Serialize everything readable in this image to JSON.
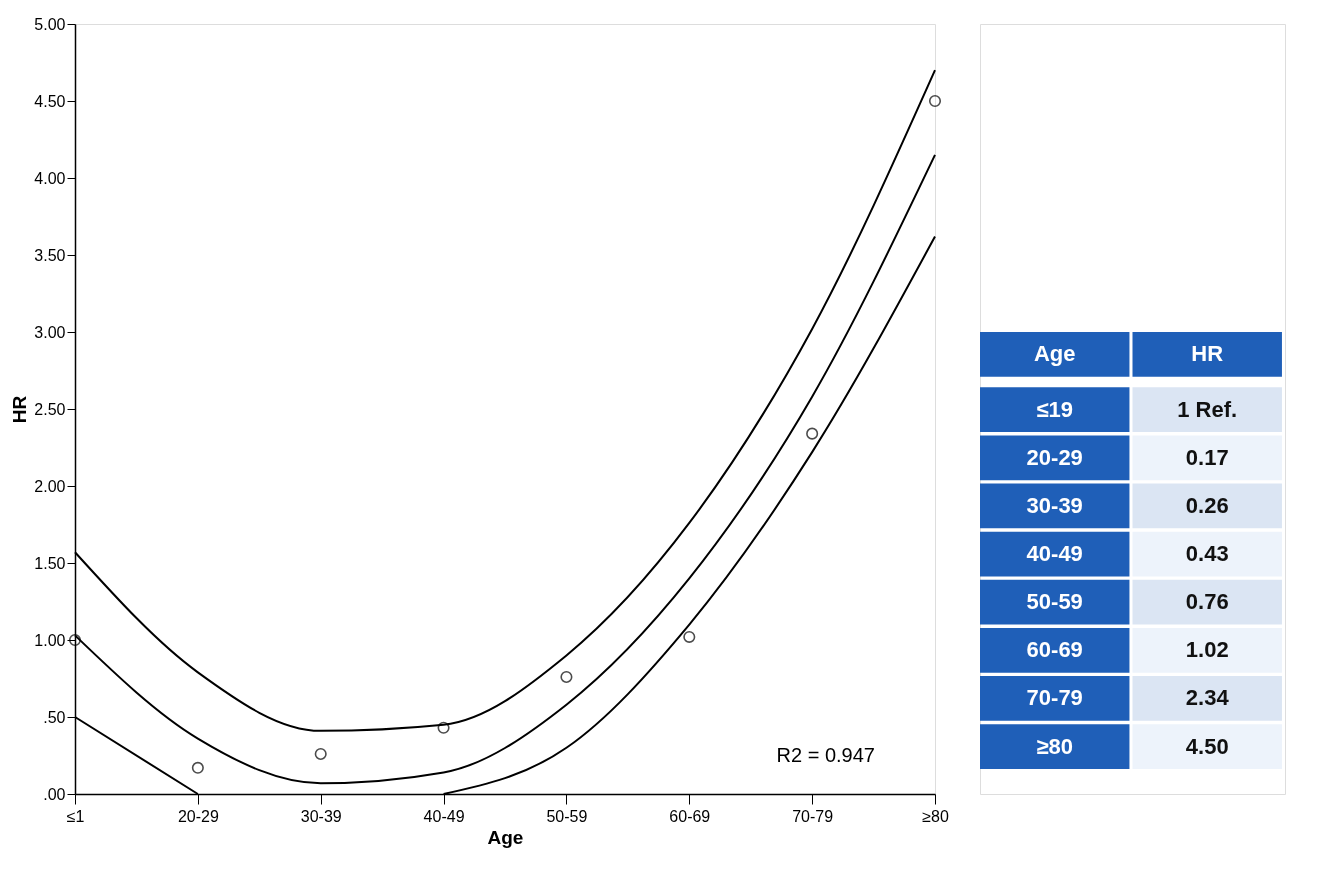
{
  "chart_data": [
    {
      "type": "scatter",
      "xlabel": "Age",
      "ylabel": "HR",
      "categories": [
        "≤1",
        "20-29",
        "30-39",
        "40-49",
        "50-59",
        "60-69",
        "70-79",
        "≥80"
      ],
      "ylim": [
        0,
        5
      ],
      "yticks": [
        {
          "value": 0,
          "label": ".00"
        },
        {
          "value": 0.5,
          "label": ".50"
        },
        {
          "value": 1,
          "label": "1.00"
        },
        {
          "value": 1.5,
          "label": "1.50"
        },
        {
          "value": 2,
          "label": "2.00"
        },
        {
          "value": 2.5,
          "label": "2.50"
        },
        {
          "value": 3,
          "label": "3.00"
        },
        {
          "value": 3.5,
          "label": "3.50"
        },
        {
          "value": 4,
          "label": "4.00"
        },
        {
          "value": 4.5,
          "label": "4.50"
        },
        {
          "value": 5,
          "label": "5.00"
        }
      ],
      "grid": false,
      "marker": "circle",
      "annotations": [
        "R2 = 0.947"
      ],
      "series": [
        {
          "type": "scatter",
          "color": "#000000",
          "values": [
            1.0,
            0.17,
            0.26,
            0.43,
            0.76,
            1.02,
            2.34,
            4.5
          ]
        },
        {
          "type": "line",
          "marker": "none",
          "color": "#000000",
          "values": [
            1.57,
            0.79,
            0.41,
            0.45,
            0.9,
            1.76,
            3.02,
            4.7
          ]
        },
        {
          "type": "line",
          "marker": "none",
          "color": "#000000",
          "values": [
            1.03,
            0.36,
            0.07,
            0.14,
            0.58,
            1.4,
            2.58,
            4.15
          ]
        },
        {
          "type": "line",
          "marker": "none",
          "color": "#000000",
          "values": [
            0.5,
            0.0,
            null,
            0.0,
            0.3,
            1.1,
            2.22,
            3.62
          ]
        }
      ]
    },
    {
      "type": "other",
      "xlabel": "Age",
      "ylabel": "HR",
      "categories": [
        "≤19",
        "20-29",
        "30-39",
        "40-49",
        "50-59",
        "60-69",
        "70-79",
        "≥80"
      ],
      "value_labels": [
        "1 Ref.",
        "0.17",
        "0.26",
        "0.43",
        "0.76",
        "1.02",
        "2.34",
        "4.50"
      ]
    }
  ]
}
